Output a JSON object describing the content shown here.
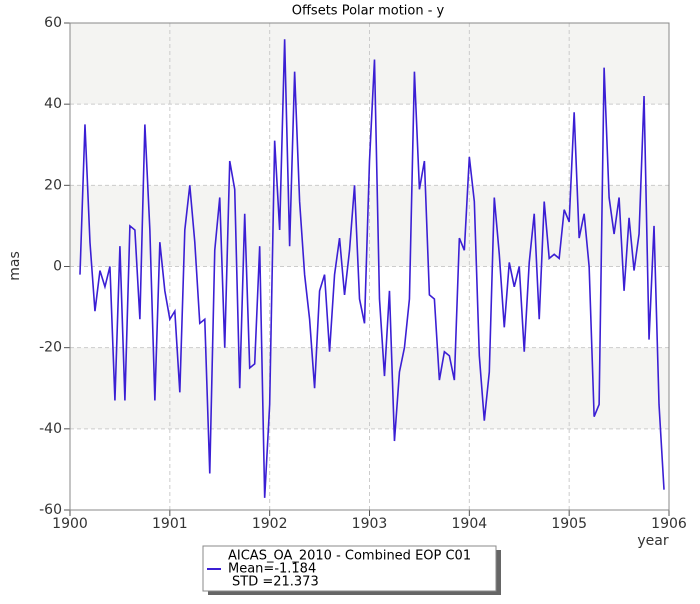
{
  "chart_data": {
    "type": "line",
    "title": "Offsets Polar motion - y",
    "xlabel": "year",
    "ylabel": "mas",
    "x": [
      1900.1,
      1900.15,
      1900.2,
      1900.25,
      1900.3,
      1900.35,
      1900.4,
      1900.45,
      1900.5,
      1900.55,
      1900.6,
      1900.65,
      1900.7,
      1900.75,
      1900.8,
      1900.85,
      1900.9,
      1900.95,
      1901,
      1901.05,
      1901.1,
      1901.15,
      1901.2,
      1901.25,
      1901.3,
      1901.35,
      1901.4,
      1901.45,
      1901.5,
      1901.55,
      1901.6,
      1901.65,
      1901.7,
      1901.75,
      1901.8,
      1901.85,
      1901.9,
      1901.95,
      1902,
      1902.05,
      1902.1,
      1902.15,
      1902.2,
      1902.25,
      1902.3,
      1902.35,
      1902.4,
      1902.45,
      1902.5,
      1902.55,
      1902.6,
      1902.65,
      1902.7,
      1902.75,
      1902.8,
      1902.85,
      1902.9,
      1902.95,
      1903,
      1903.05,
      1903.1,
      1903.15,
      1903.2,
      1903.25,
      1903.3,
      1903.35,
      1903.4,
      1903.45,
      1903.5,
      1903.55,
      1903.6,
      1903.65,
      1903.7,
      1903.75,
      1903.8,
      1903.85,
      1903.9,
      1903.95,
      1904,
      1904.05,
      1904.1,
      1904.15,
      1904.2,
      1904.25,
      1904.3,
      1904.35,
      1904.4,
      1904.45,
      1904.5,
      1904.55,
      1904.6,
      1904.65,
      1904.7,
      1904.75,
      1904.8,
      1904.85,
      1904.9,
      1904.95,
      1905,
      1905.05,
      1905.1,
      1905.15,
      1905.2,
      1905.25,
      1905.3,
      1905.35,
      1905.4,
      1905.45,
      1905.5,
      1905.55,
      1905.6,
      1905.65,
      1905.7,
      1905.75,
      1905.8,
      1905.85,
      1905.9,
      1905.95
    ],
    "series": [
      {
        "name": "AICAS_OA_2010 - Combined EOP C01",
        "color": "#3b1fd4",
        "values": [
          -2,
          35,
          6,
          -11,
          -1,
          -5,
          0,
          -33,
          5,
          -33,
          10,
          9,
          -13,
          35,
          9,
          -33,
          6,
          -6,
          -13,
          -11,
          -31,
          9,
          20,
          6,
          -14,
          -13,
          -51,
          4,
          17,
          -20,
          26,
          19,
          -30,
          13,
          -25,
          -24,
          5,
          -57,
          -34,
          31,
          9,
          56,
          5,
          48,
          16,
          -2,
          -13,
          -30,
          -6,
          -2,
          -21,
          -2,
          7,
          -7,
          4,
          20,
          -8,
          -14,
          26,
          51,
          -8,
          -27,
          -6,
          -43,
          -26,
          -20,
          -8,
          48,
          19,
          26,
          -7,
          -8,
          -28,
          -21,
          -22,
          -28,
          7,
          4,
          27,
          16,
          -22,
          -38,
          -26,
          17,
          3,
          -15,
          1,
          -5,
          0,
          -21,
          1,
          13,
          -13,
          16,
          2,
          3,
          2,
          14,
          11,
          38,
          7,
          13,
          0,
          -37,
          -34,
          49,
          17,
          8,
          17,
          -6,
          12,
          -1,
          8,
          42,
          -18,
          10,
          -34,
          -55
        ]
      }
    ],
    "legend_notes": [
      "Mean=-1.184",
      "STD =21.373"
    ],
    "xlim": [
      1900,
      1906
    ],
    "xticks": [
      1900,
      1901,
      1902,
      1903,
      1904,
      1905,
      1906
    ],
    "ylim": [
      -60,
      60
    ],
    "yticks": [
      -60,
      -40,
      -20,
      0,
      20,
      40,
      60
    ],
    "grid": true
  }
}
